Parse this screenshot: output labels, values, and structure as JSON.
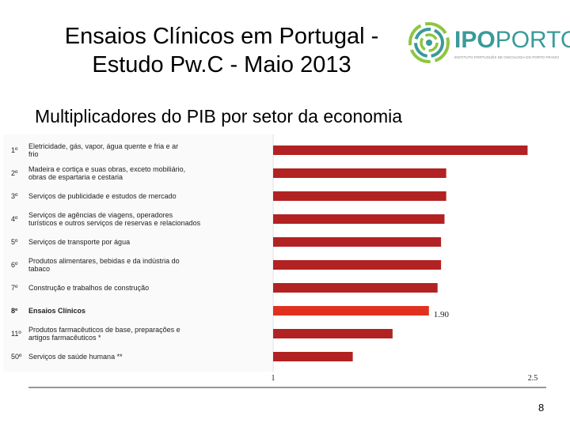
{
  "slide": {
    "title_line1": "Ensaios Clínicos em Portugal -",
    "title_line2": "Estudo Pw.C - Maio 2013",
    "subtitle": "Multiplicadores do PIB por setor da economia",
    "page_number": "8"
  },
  "logo": {
    "brand_bold": "IPO",
    "brand_light": "PORTO",
    "tagline": "INSTITUTO PORTUGUÊS DE ONCOLOGIA DO PORTO FRANCISCO GENTIL",
    "icon": "spiral-logo-icon"
  },
  "colors": {
    "bar": "#b22222",
    "highlight_bar": "#e0311f",
    "logo_teal": "#3a9a9a",
    "logo_green": "#8dc63f"
  },
  "chart_data": {
    "type": "bar",
    "orientation": "horizontal",
    "ranks": [
      "1º",
      "2º",
      "3º",
      "4º",
      "5º",
      "6º",
      "7º",
      "8º",
      "11º",
      "50º"
    ],
    "categories": [
      "Eletricidade, gás, vapor, água quente e fria e ar frio",
      "Madeira e cortiça e suas obras, exceto mobiliário, obras de espartaria e cestaria",
      "Serviços de publicidade e estudos de mercado",
      "Serviços de agências de viagens, operadores turísticos e outros serviços de reservas e relacionados",
      "Serviços de transporte por água",
      "Produtos alimentares, bebidas e da indústria do tabaco",
      "Construção e trabalhos de construção",
      "Ensaios Clínicos",
      "Produtos farmacêuticos de base, preparações e artigos farmacêuticos *",
      "Serviços de saúde humana **"
    ],
    "values": [
      2.47,
      2.0,
      2.0,
      1.99,
      1.97,
      1.97,
      1.95,
      1.9,
      1.69,
      1.46
    ],
    "highlight_index": 7,
    "data_label": "1.90",
    "xlim": [
      1,
      2.5
    ],
    "x_ticks": [
      "1",
      "2.5"
    ]
  }
}
